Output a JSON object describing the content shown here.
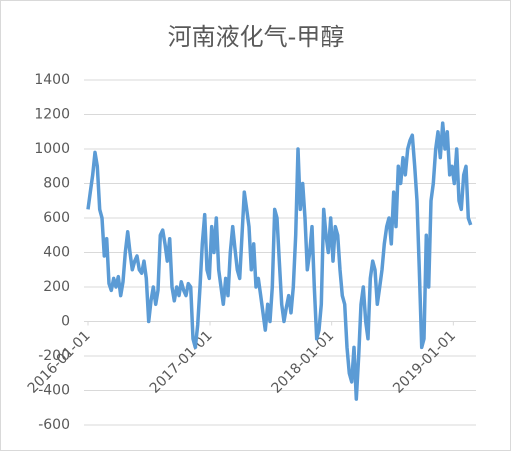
{
  "chart_data": {
    "type": "line",
    "title": "河南液化气-甲醇",
    "x": [
      "2016-01-01",
      "2016-01-08",
      "2016-01-15",
      "2016-01-22",
      "2016-01-29",
      "2016-02-05",
      "2016-02-12",
      "2016-02-19",
      "2016-02-26",
      "2016-03-04",
      "2016-03-11",
      "2016-03-18",
      "2016-03-25",
      "2016-04-01",
      "2016-04-08",
      "2016-04-15",
      "2016-04-22",
      "2016-04-29",
      "2016-05-06",
      "2016-05-13",
      "2016-05-20",
      "2016-05-27",
      "2016-06-03",
      "2016-06-10",
      "2016-06-17",
      "2016-06-24",
      "2016-07-01",
      "2016-07-08",
      "2016-07-15",
      "2016-07-22",
      "2016-07-29",
      "2016-08-05",
      "2016-08-12",
      "2016-08-19",
      "2016-08-26",
      "2016-09-02",
      "2016-09-09",
      "2016-09-16",
      "2016-09-23",
      "2016-09-30",
      "2016-10-07",
      "2016-10-14",
      "2016-10-21",
      "2016-10-28",
      "2016-11-04",
      "2016-11-11",
      "2016-11-18",
      "2016-11-25",
      "2016-12-02",
      "2016-12-09",
      "2016-12-16",
      "2016-12-23",
      "2016-12-30",
      "2017-01-06",
      "2017-01-13",
      "2017-01-20",
      "2017-01-27",
      "2017-02-03",
      "2017-02-10",
      "2017-02-17",
      "2017-02-24",
      "2017-03-03",
      "2017-03-10",
      "2017-03-17",
      "2017-03-24",
      "2017-03-31",
      "2017-04-07",
      "2017-04-14",
      "2017-04-21",
      "2017-04-28",
      "2017-05-05",
      "2017-05-12",
      "2017-05-19",
      "2017-05-26",
      "2017-06-02",
      "2017-06-09",
      "2017-06-16",
      "2017-06-23",
      "2017-06-30",
      "2017-07-07",
      "2017-07-14",
      "2017-07-21",
      "2017-07-28",
      "2017-08-04",
      "2017-08-11",
      "2017-08-18",
      "2017-08-25",
      "2017-09-01",
      "2017-09-08",
      "2017-09-15",
      "2017-09-22",
      "2017-09-29",
      "2017-10-06",
      "2017-10-13",
      "2017-10-20",
      "2017-10-27",
      "2017-11-03",
      "2017-11-10",
      "2017-11-17",
      "2017-11-24",
      "2017-12-01",
      "2017-12-08",
      "2017-12-15",
      "2017-12-22",
      "2017-12-29",
      "2018-01-05",
      "2018-01-12",
      "2018-01-19",
      "2018-01-26",
      "2018-02-02",
      "2018-02-09",
      "2018-02-16",
      "2018-02-23",
      "2018-03-02",
      "2018-03-09",
      "2018-03-16",
      "2018-03-23",
      "2018-03-30",
      "2018-04-06",
      "2018-04-13",
      "2018-04-20",
      "2018-04-27",
      "2018-05-04",
      "2018-05-11",
      "2018-05-18",
      "2018-05-25",
      "2018-06-01",
      "2018-06-08",
      "2018-06-15",
      "2018-06-22",
      "2018-06-29",
      "2018-07-06",
      "2018-07-13",
      "2018-07-20",
      "2018-07-27",
      "2018-08-03",
      "2018-08-10",
      "2018-08-17",
      "2018-08-24",
      "2018-08-31",
      "2018-09-07",
      "2018-09-14",
      "2018-09-21",
      "2018-09-28",
      "2018-10-05",
      "2018-10-12",
      "2018-10-19",
      "2018-10-26",
      "2018-11-02",
      "2018-11-09",
      "2018-11-16",
      "2018-11-23",
      "2018-11-30",
      "2018-12-07",
      "2018-12-14",
      "2018-12-21",
      "2018-12-28",
      "2019-01-04",
      "2019-01-11",
      "2019-01-18",
      "2019-01-25",
      "2019-02-01",
      "2019-02-08",
      "2019-02-15",
      "2019-02-22"
    ],
    "series": [
      {
        "color": "#5b9bd5",
        "values": [
          650,
          750,
          850,
          980,
          900,
          650,
          600,
          380,
          480,
          220,
          180,
          250,
          200,
          260,
          150,
          230,
          400,
          520,
          400,
          300,
          350,
          380,
          300,
          280,
          350,
          250,
          0,
          120,
          200,
          100,
          180,
          500,
          530,
          450,
          350,
          480,
          200,
          120,
          200,
          150,
          230,
          180,
          150,
          220,
          200,
          -100,
          -150,
          -20,
          200,
          450,
          620,
          300,
          250,
          550,
          400,
          600,
          300,
          200,
          100,
          250,
          150,
          400,
          550,
          420,
          300,
          250,
          500,
          750,
          650,
          550,
          300,
          450,
          200,
          250,
          150,
          50,
          -50,
          100,
          0,
          200,
          650,
          600,
          350,
          100,
          0,
          80,
          150,
          50,
          200,
          500,
          1000,
          650,
          800,
          600,
          300,
          400,
          550,
          200,
          -100,
          -50,
          100,
          650,
          500,
          400,
          600,
          350,
          550,
          500,
          300,
          150,
          100,
          -150,
          -300,
          -350,
          -150,
          -450,
          -200,
          100,
          200,
          0,
          -100,
          250,
          350,
          300,
          100,
          200,
          300,
          450,
          550,
          600,
          450,
          750,
          550,
          900,
          800,
          950,
          850,
          1000,
          1050,
          1080,
          900,
          700,
          300,
          -150,
          -100,
          500,
          200,
          700,
          800,
          1000,
          1100,
          950,
          1150,
          1000,
          1100,
          850,
          900,
          800,
          1000,
          700,
          650,
          850,
          900,
          600,
          560
        ]
      }
    ],
    "xlim": [
      "2016-01-01",
      "2019-03-01"
    ],
    "xticks": [
      "2016-01-01",
      "2017-01-01",
      "2018-01-01",
      "2019-01-01"
    ],
    "ylim": [
      -600,
      1400
    ],
    "yticks": [
      -600,
      -400,
      -200,
      0,
      200,
      400,
      600,
      800,
      1000,
      1200,
      1400
    ],
    "grid": true
  }
}
